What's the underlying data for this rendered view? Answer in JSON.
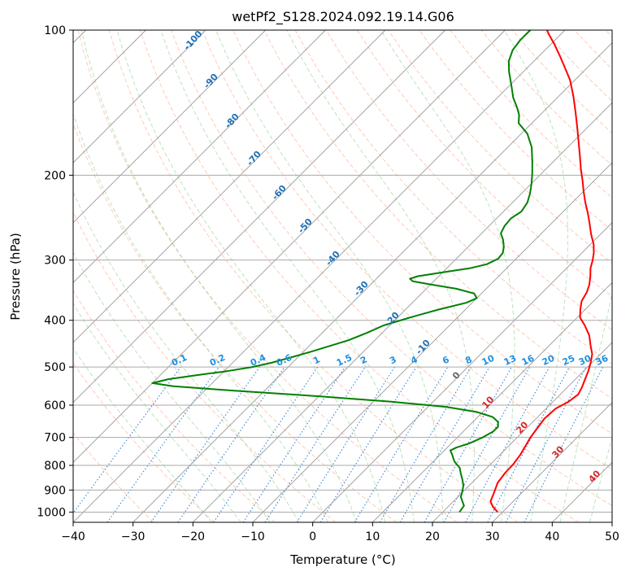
{
  "chart_data": {
    "type": "line",
    "title": "wetPf2_S128.2024.092.19.14.G06",
    "xlabel": "Temperature (°C)",
    "ylabel": "Pressure (hPa)",
    "xlim": [
      -40,
      50
    ],
    "ylim": [
      1050,
      100
    ],
    "y_scale": "log",
    "x_ticks": [
      -40,
      -30,
      -20,
      -10,
      0,
      10,
      20,
      30,
      40,
      50
    ],
    "y_ticks": [
      1000,
      900,
      800,
      700,
      600,
      500,
      400,
      300,
      200,
      100
    ],
    "grid": true,
    "skew": 1.0,
    "series": [
      {
        "color": "#ff0000",
        "points": [
          [
            29.2,
            1000
          ],
          [
            27.5,
            975
          ],
          [
            26.2,
            950
          ],
          [
            25.3,
            910
          ],
          [
            24.3,
            870
          ],
          [
            23.9,
            830
          ],
          [
            23.8,
            795
          ],
          [
            23.4,
            760
          ],
          [
            22.8,
            730
          ],
          [
            22.2,
            700
          ],
          [
            21.8,
            670
          ],
          [
            21.4,
            640
          ],
          [
            21.6,
            610
          ],
          [
            22.6,
            590
          ],
          [
            23.0,
            570
          ],
          [
            22.4,
            550
          ],
          [
            21.6,
            530
          ],
          [
            20.8,
            510
          ],
          [
            19.8,
            490
          ],
          [
            18.6,
            470
          ],
          [
            16.8,
            450
          ],
          [
            15.0,
            430
          ],
          [
            12.6,
            410
          ],
          [
            10.5,
            395
          ],
          [
            9.2,
            380
          ],
          [
            8.0,
            365
          ],
          [
            7.4,
            350
          ],
          [
            6.6,
            338
          ],
          [
            5.4,
            325
          ],
          [
            4.0,
            312
          ],
          [
            3.0,
            300
          ],
          [
            2.0,
            290
          ],
          [
            0.5,
            278
          ],
          [
            -1.6,
            265
          ],
          [
            -3.6,
            252
          ],
          [
            -5.6,
            240
          ],
          [
            -7.8,
            228
          ],
          [
            -10.0,
            216
          ],
          [
            -12.0,
            205
          ],
          [
            -14.0,
            195
          ],
          [
            -16.6,
            182
          ],
          [
            -19.2,
            170
          ],
          [
            -22.0,
            158
          ],
          [
            -24.8,
            147
          ],
          [
            -27.6,
            137
          ],
          [
            -30.8,
            127
          ],
          [
            -33.6,
            120
          ],
          [
            -36.6,
            113
          ],
          [
            -39.4,
            107
          ],
          [
            -42.0,
            102
          ],
          [
            -43.0,
            100
          ]
        ]
      },
      {
        "color": "#008000",
        "points": [
          [
            22.8,
            1000
          ],
          [
            22.5,
            970
          ],
          [
            21.5,
            950
          ],
          [
            20.5,
            930
          ],
          [
            19.8,
            905
          ],
          [
            19.0,
            880
          ],
          [
            17.8,
            855
          ],
          [
            16.5,
            830
          ],
          [
            15.5,
            810
          ],
          [
            13.5,
            785
          ],
          [
            12.0,
            760
          ],
          [
            11.0,
            745
          ],
          [
            11.5,
            735
          ],
          [
            13.0,
            720
          ],
          [
            14.2,
            700
          ],
          [
            15.0,
            680
          ],
          [
            15.0,
            665
          ],
          [
            14.2,
            650
          ],
          [
            12.5,
            635
          ],
          [
            9.0,
            620
          ],
          [
            3.0,
            605
          ],
          [
            -7.0,
            590
          ],
          [
            -20.0,
            575
          ],
          [
            -35.0,
            560
          ],
          [
            -46.0,
            548
          ],
          [
            -50.0,
            540
          ],
          [
            -48.0,
            530
          ],
          [
            -44.0,
            520
          ],
          [
            -39.5,
            510
          ],
          [
            -36.0,
            500
          ],
          [
            -33.5,
            490
          ],
          [
            -31.2,
            478
          ],
          [
            -28.8,
            465
          ],
          [
            -26.5,
            452
          ],
          [
            -24.4,
            440
          ],
          [
            -22.6,
            425
          ],
          [
            -21.0,
            410
          ],
          [
            -18.0,
            395
          ],
          [
            -14.5,
            380
          ],
          [
            -11.0,
            368
          ],
          [
            -10.0,
            360
          ],
          [
            -11.2,
            352
          ],
          [
            -15.0,
            344
          ],
          [
            -20.0,
            337
          ],
          [
            -23.5,
            332
          ],
          [
            -24.4,
            328
          ],
          [
            -23.5,
            324
          ],
          [
            -20.0,
            318
          ],
          [
            -16.2,
            312
          ],
          [
            -14.0,
            306
          ],
          [
            -13.0,
            298
          ],
          [
            -13.2,
            290
          ],
          [
            -14.0,
            282
          ],
          [
            -15.4,
            272
          ],
          [
            -16.8,
            264
          ],
          [
            -17.4,
            255
          ],
          [
            -17.6,
            246
          ],
          [
            -17.0,
            238
          ],
          [
            -17.5,
            228
          ],
          [
            -18.6,
            218
          ],
          [
            -20.0,
            208
          ],
          [
            -21.6,
            198
          ],
          [
            -23.6,
            187
          ],
          [
            -26.0,
            175
          ],
          [
            -29.0,
            164
          ],
          [
            -32.2,
            156
          ],
          [
            -33.5,
            150
          ],
          [
            -35.0,
            145
          ],
          [
            -37.4,
            138
          ],
          [
            -39.8,
            130
          ],
          [
            -42.4,
            122
          ],
          [
            -44.2,
            116
          ],
          [
            -45.4,
            110
          ],
          [
            -45.8,
            105
          ],
          [
            -45.8,
            100
          ]
        ]
      }
    ],
    "annotations": {
      "dry_adiabats": [
        "-100",
        "-90",
        "-80",
        "-70",
        "-60",
        "-50",
        "-40",
        "-30",
        "-20",
        "-10",
        "0",
        "10",
        "20",
        "30",
        "40"
      ],
      "mixing_ratios": [
        "0.1",
        "0.2",
        "0.4",
        "0.6",
        "1",
        "1.5",
        "2",
        "3",
        "4",
        "6",
        "8",
        "10",
        "13",
        "16",
        "20",
        "25",
        "30",
        "36"
      ]
    }
  }
}
